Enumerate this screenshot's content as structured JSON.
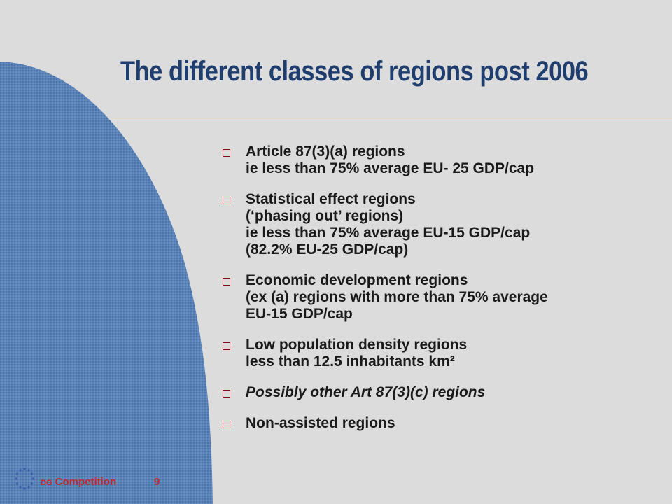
{
  "slide": {
    "title": "The different classes of regions post 2006",
    "bullets": [
      {
        "lines": [
          "Article 87(3)(a) regions",
          "ie less than 75% average EU- 25 GDP/cap"
        ],
        "italic": false
      },
      {
        "lines": [
          "Statistical effect regions",
          "(‘phasing out’ regions)",
          "ie less than 75% average EU-15 GDP/cap",
          "(82.2% EU-25 GDP/cap)"
        ],
        "italic": false
      },
      {
        "lines": [
          "Economic development regions",
          "(ex (a) regions with more than 75% average",
          "EU-15 GDP/cap"
        ],
        "italic": false
      },
      {
        "lines": [
          "Low population density regions",
          "less than 12.5 inhabitants km²"
        ],
        "italic": false
      },
      {
        "lines": [
          "Possibly other Art 87(3)(c) regions"
        ],
        "italic": true
      },
      {
        "lines": [
          "Non-assisted regions"
        ],
        "italic": false
      }
    ]
  },
  "footer": {
    "dg": "DG",
    "department": "Competition",
    "page_number": "9",
    "logo_icon": "eu-stars-icon"
  },
  "colors": {
    "background": "#dcdcdc",
    "title": "#1f3e6e",
    "rule": "#b22b2b",
    "blob": "#5b83b8",
    "bullet_box": "#7a0f1c",
    "footer_text": "#c0282b"
  }
}
